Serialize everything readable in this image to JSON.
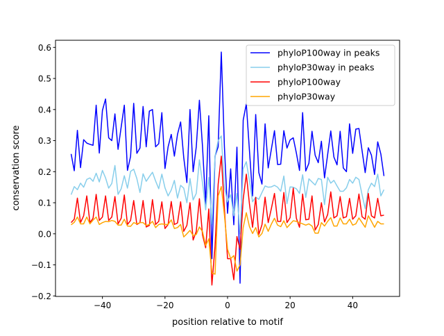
{
  "chart_data": {
    "type": "line",
    "title": "",
    "xlabel": "position relative to motif",
    "ylabel": "conservation score",
    "xlim": [
      -55,
      55
    ],
    "ylim": [
      -0.2016,
      0.623
    ],
    "xticks": [
      -40,
      -20,
      0,
      20,
      40
    ],
    "xtick_labels": [
      "−40",
      "−20",
      "0",
      "20",
      "40"
    ],
    "yticks": [
      -0.2,
      -0.1,
      0.0,
      0.1,
      0.2,
      0.3,
      0.4,
      0.5,
      0.6
    ],
    "ytick_labels": [
      "−0.2",
      "−0.1",
      "0.0",
      "0.1",
      "0.2",
      "0.3",
      "0.4",
      "0.5",
      "0.6"
    ],
    "grid": false,
    "legend_position": "top-right",
    "x_start": -50,
    "x_step": 1,
    "series": [
      {
        "name": "phyloP100way in peaks",
        "color": "#0000ff",
        "values": [
          0.257,
          0.203,
          0.333,
          0.213,
          0.303,
          0.292,
          0.288,
          0.285,
          0.414,
          0.26,
          0.397,
          0.434,
          0.309,
          0.3,
          0.386,
          0.272,
          0.344,
          0.414,
          0.204,
          0.249,
          0.42,
          0.259,
          0.276,
          0.41,
          0.28,
          0.395,
          0.4,
          0.28,
          0.29,
          0.39,
          0.21,
          0.28,
          0.32,
          0.25,
          0.32,
          0.36,
          0.245,
          0.165,
          0.4,
          0.2,
          0.28,
          0.43,
          0.28,
          0.095,
          0.38,
          -0.08,
          0.25,
          0.28,
          0.585,
          0.28,
          0.066,
          0.209,
          0.029,
          0.279,
          -0.159,
          0.366,
          0.418,
          0.268,
          0.122,
          0.384,
          0.197,
          0.16,
          0.354,
          0.212,
          0.272,
          0.332,
          0.223,
          0.224,
          0.332,
          0.276,
          0.302,
          0.309,
          0.26,
          0.204,
          0.39,
          0.202,
          0.227,
          0.33,
          0.253,
          0.229,
          0.298,
          0.18,
          0.255,
          0.331,
          0.247,
          0.222,
          0.33,
          0.212,
          0.2,
          0.354,
          0.259,
          0.337,
          0.339,
          0.268,
          0.197,
          0.277,
          0.253,
          0.191,
          0.296,
          0.257,
          0.186
        ]
      },
      {
        "name": "phyloP30way in peaks",
        "color": "#87ceeb",
        "values": [
          0.126,
          0.152,
          0.142,
          0.163,
          0.15,
          0.175,
          0.18,
          0.169,
          0.195,
          0.167,
          0.204,
          0.18,
          0.147,
          0.162,
          0.22,
          0.127,
          0.145,
          0.187,
          0.147,
          0.201,
          0.208,
          0.178,
          0.133,
          0.193,
          0.169,
          0.184,
          0.198,
          0.17,
          0.145,
          0.192,
          0.148,
          0.122,
          0.141,
          0.172,
          0.115,
          0.156,
          0.147,
          0.1,
          0.178,
          0.109,
          0.13,
          0.238,
          0.163,
          0.077,
          0.182,
          0.03,
          0.25,
          0.3,
          0.315,
          0.15,
          0.103,
          0.126,
          0.058,
          0.13,
          0.0,
          0.209,
          0.232,
          0.171,
          0.103,
          0.118,
          0.111,
          0.133,
          0.154,
          0.15,
          0.151,
          0.156,
          0.15,
          0.137,
          0.186,
          0.097,
          0.151,
          0.15,
          0.145,
          0.13,
          0.19,
          0.117,
          0.177,
          0.167,
          0.157,
          0.178,
          0.175,
          0.094,
          0.182,
          0.163,
          0.172,
          0.154,
          0.137,
          0.137,
          0.148,
          0.175,
          0.163,
          0.182,
          0.175,
          0.126,
          0.081,
          0.142,
          0.163,
          0.152,
          0.192,
          0.122,
          0.142
        ]
      },
      {
        "name": "phyloP100way",
        "color": "#ff0000",
        "values": [
          0.036,
          0.047,
          0.115,
          0.036,
          0.058,
          0.122,
          0.036,
          0.05,
          0.127,
          0.043,
          0.054,
          0.122,
          0.043,
          0.054,
          0.12,
          0.032,
          0.05,
          0.125,
          0.03,
          0.043,
          0.107,
          0.03,
          0.036,
          0.107,
          0.022,
          0.027,
          0.11,
          0.03,
          0.04,
          0.103,
          0.017,
          0.03,
          0.104,
          0.03,
          0.035,
          0.103,
          0.008,
          0.027,
          0.1,
          -0.02,
          0.008,
          0.113,
          -0.004,
          -0.045,
          0.08,
          -0.165,
          -0.04,
          0.16,
          0.25,
          0.08,
          -0.08,
          -0.08,
          -0.148,
          -0.009,
          -0.05,
          0.111,
          0.192,
          0.096,
          0.021,
          0.117,
          -0.002,
          0.029,
          0.118,
          0.036,
          0.081,
          0.13,
          0.04,
          0.04,
          0.133,
          0.036,
          0.052,
          0.147,
          0.05,
          0.021,
          0.128,
          0.045,
          0.047,
          0.122,
          0.012,
          0.03,
          0.1,
          0.038,
          0.062,
          0.135,
          0.051,
          0.058,
          0.12,
          0.051,
          0.055,
          0.114,
          0.047,
          0.058,
          0.128,
          0.055,
          0.047,
          0.13,
          0.058,
          0.051,
          0.114,
          0.058,
          0.06
        ]
      },
      {
        "name": "phyloP30way",
        "color": "#ffa500",
        "values": [
          0.029,
          0.037,
          0.054,
          0.032,
          0.032,
          0.054,
          0.032,
          0.044,
          0.054,
          0.03,
          0.036,
          0.04,
          0.039,
          0.043,
          0.04,
          0.028,
          0.028,
          0.047,
          0.025,
          0.024,
          0.036,
          0.032,
          0.036,
          0.036,
          0.027,
          0.03,
          0.04,
          0.02,
          0.03,
          0.032,
          0.03,
          0.03,
          0.045,
          0.017,
          0.02,
          0.03,
          -0.01,
          0.0,
          0.011,
          -0.006,
          -0.002,
          0.022,
          0.007,
          -0.038,
          -0.016,
          -0.126,
          -0.13,
          0.122,
          0.152,
          0.06,
          -0.05,
          -0.08,
          -0.07,
          -0.12,
          -0.1,
          0.02,
          0.068,
          0.023,
          0.001,
          0.02,
          -0.01,
          0.001,
          0.031,
          0.008,
          0.031,
          0.05,
          0.028,
          0.023,
          0.042,
          0.02,
          0.031,
          0.042,
          0.04,
          0.036,
          0.032,
          0.028,
          0.032,
          0.025,
          0.002,
          0.002,
          0.036,
          0.025,
          0.04,
          0.052,
          0.025,
          0.025,
          0.051,
          0.032,
          0.032,
          0.047,
          0.028,
          0.032,
          0.051,
          0.036,
          0.021,
          0.058,
          0.04,
          0.021,
          0.04,
          0.032,
          0.032
        ]
      }
    ]
  }
}
